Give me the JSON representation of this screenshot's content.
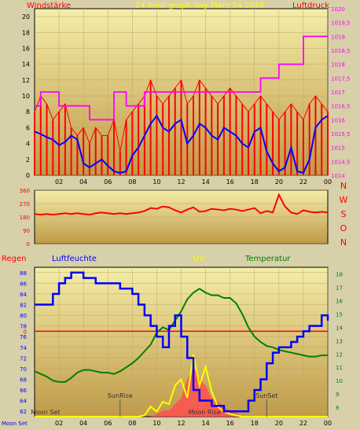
{
  "header": {
    "left_label": "Windstärke",
    "center_label": "24 hour graph day   Marz 14 2016",
    "right_label": "Luftdruck"
  },
  "lower_header": {
    "regen": "Regen",
    "luftfeuchte": "Luftfeuchte",
    "uv": "UV",
    "temperatur": "Temperatur"
  },
  "colors": {
    "background": "#d8d0a8",
    "plot_bg_top": "#f4eda8",
    "plot_bg_bottom": "#c09a48",
    "wind_gust": "#ff0000",
    "wind_avg": "#0000ff",
    "pressure": "#ff00ff",
    "direction": "#ff0000",
    "humidity": "#0000ff",
    "temperature": "#008000",
    "uv": "#ffff00",
    "rain_axis": "#ff0000",
    "solar": "#ff5050"
  },
  "x_ticks": [
    "02",
    "04",
    "06",
    "08",
    "10",
    "12",
    "14",
    "16",
    "18",
    "20",
    "22",
    "00"
  ],
  "chart_data": [
    {
      "type": "line",
      "panel": "wind_pressure",
      "x": [
        0,
        0.5,
        1,
        1.5,
        2,
        2.5,
        3,
        3.5,
        4,
        4.5,
        5,
        5.5,
        6,
        6.5,
        7,
        7.5,
        8,
        8.5,
        9,
        9.5,
        10,
        10.5,
        11,
        11.5,
        12,
        12.5,
        13,
        13.5,
        14,
        14.5,
        15,
        15.5,
        16,
        16.5,
        17,
        17.5,
        18,
        18.5,
        19,
        19.5,
        20,
        20.5,
        21,
        21.5,
        22,
        22.5,
        23,
        23.5,
        24
      ],
      "left_axis": {
        "label": "Windstärke",
        "ylim": [
          0,
          21
        ],
        "ticks": [
          0,
          2,
          4,
          6,
          8,
          10,
          12,
          14,
          16,
          18,
          20
        ]
      },
      "right_axis": {
        "label": "Luftdruck",
        "ylim": [
          1014,
          1020
        ],
        "ticks": [
          "1014",
          "1014,5",
          "1015",
          "1015,5",
          "1016",
          "1016,5",
          "1017",
          "1017,5",
          "1018",
          "1018,5",
          "1019",
          "1019,5",
          "1020"
        ]
      },
      "series": [
        {
          "axis": "left",
          "values": [
            8,
            10,
            9,
            7,
            8,
            9,
            6,
            5,
            6,
            4,
            6,
            5,
            5,
            7,
            3,
            7,
            8,
            9,
            10,
            12,
            10,
            9,
            10,
            11,
            12,
            9,
            10,
            12,
            11,
            10,
            9,
            10,
            11,
            10,
            9,
            8,
            9,
            10,
            9,
            8,
            7,
            8,
            9,
            8,
            7,
            9,
            10,
            9,
            8
          ]
        },
        {
          "axis": "left",
          "values": [
            5.5,
            5.2,
            4.8,
            4.5,
            3.8,
            4.2,
            5.0,
            4.5,
            1.5,
            1.0,
            1.5,
            2.0,
            1.2,
            0.5,
            0.3,
            0.5,
            2.5,
            3.5,
            5.0,
            6.5,
            7.5,
            6.0,
            5.5,
            6.5,
            7.0,
            4.0,
            5.0,
            6.5,
            6.0,
            5.0,
            4.5,
            6.0,
            5.5,
            5.0,
            4.0,
            3.5,
            5.5,
            6.0,
            3.0,
            1.5,
            0.5,
            1.0,
            3.5,
            0.5,
            0.3,
            2.0,
            6.0,
            7.0,
            7.5
          ]
        },
        {
          "axis": "right",
          "values": [
            1016.5,
            1017,
            1017,
            1017,
            1016.5,
            1016.5,
            1016.5,
            1016.5,
            1016.5,
            1016,
            1016,
            1016,
            1016,
            1017,
            1017,
            1016.5,
            1016.5,
            1016.5,
            1017,
            1017,
            1017,
            1017,
            1017,
            1017,
            1017,
            1017,
            1017,
            1017,
            1017,
            1017,
            1017,
            1017,
            1017,
            1017,
            1017,
            1017,
            1017,
            1017.5,
            1017.5,
            1017.5,
            1018,
            1018,
            1018,
            1018,
            1019,
            1019,
            1019,
            1019,
            1019
          ]
        }
      ]
    },
    {
      "type": "line",
      "panel": "wind_direction",
      "x": [
        0,
        0.5,
        1,
        1.5,
        2,
        2.5,
        3,
        3.5,
        4,
        4.5,
        5,
        5.5,
        6,
        6.5,
        7,
        7.5,
        8,
        8.5,
        9,
        9.5,
        10,
        10.5,
        11,
        11.5,
        12,
        12.5,
        13,
        13.5,
        14,
        14.5,
        15,
        15.5,
        16,
        16.5,
        17,
        17.5,
        18,
        18.5,
        19,
        19.5,
        20,
        20.5,
        21,
        21.5,
        22,
        22.5,
        23,
        23.5,
        24
      ],
      "ylim": [
        0,
        360
      ],
      "left_ticks": [
        0,
        90,
        180,
        270,
        360
      ],
      "right_ticks": [
        "N",
        "W",
        "S",
        "O",
        "N"
      ],
      "values": [
        200,
        195,
        200,
        195,
        200,
        205,
        200,
        205,
        200,
        195,
        205,
        210,
        205,
        200,
        205,
        200,
        205,
        210,
        220,
        240,
        235,
        250,
        245,
        225,
        210,
        230,
        245,
        215,
        220,
        235,
        230,
        225,
        235,
        230,
        220,
        230,
        240,
        205,
        220,
        210,
        330,
        250,
        210,
        200,
        225,
        215,
        210,
        215,
        210
      ]
    },
    {
      "type": "line",
      "panel": "humidity_temperature_uv",
      "x": [
        0,
        0.5,
        1,
        1.5,
        2,
        2.5,
        3,
        3.5,
        4,
        4.5,
        5,
        5.5,
        6,
        6.5,
        7,
        7.5,
        8,
        8.5,
        9,
        9.5,
        10,
        10.5,
        11,
        11.5,
        12,
        12.5,
        13,
        13.5,
        14,
        14.5,
        15,
        15.5,
        16,
        16.5,
        17,
        17.5,
        18,
        18.5,
        19,
        19.5,
        20,
        20.5,
        21,
        21.5,
        22,
        22.5,
        23,
        23.5,
        24
      ],
      "left_axis": {
        "label": "Luftfeuchte",
        "ylim": [
          61,
          89
        ],
        "ticks": [
          62,
          64,
          66,
          68,
          70,
          72,
          74,
          76,
          78,
          80,
          82,
          84,
          86,
          88
        ]
      },
      "right_axis": {
        "label": "Temperatur",
        "ylim": [
          7.3,
          18.5
        ],
        "ticks": [
          8,
          9,
          10,
          11,
          12,
          13,
          14,
          15,
          16,
          17,
          18
        ]
      },
      "rain_axis": {
        "label": "Regen",
        "ticks": [
          0
        ],
        "values": []
      },
      "uv_axis": {
        "label": "UV"
      },
      "series": [
        {
          "axis": "left",
          "values": [
            82,
            82,
            82,
            84,
            86,
            87,
            88,
            88,
            87,
            87,
            86,
            86,
            86,
            86,
            85,
            85,
            84,
            82,
            80,
            78,
            76,
            74,
            78,
            80,
            76,
            72,
            66,
            64,
            64,
            63,
            63,
            62,
            62,
            62,
            62,
            64,
            66,
            68,
            71,
            73,
            74,
            74,
            75,
            76,
            77,
            78,
            78,
            80,
            79
          ]
        },
        {
          "axis": "right",
          "values": [
            10.7,
            10.5,
            10.3,
            10.0,
            9.9,
            9.9,
            10.2,
            10.6,
            10.8,
            10.8,
            10.7,
            10.6,
            10.6,
            10.5,
            10.7,
            11.0,
            11.3,
            11.7,
            12.2,
            12.7,
            13.6,
            14.0,
            13.8,
            14.5,
            15.2,
            16.1,
            16.6,
            16.9,
            16.6,
            16.4,
            16.4,
            16.2,
            16.2,
            15.8,
            15.0,
            14.0,
            13.3,
            12.9,
            12.6,
            12.5,
            12.3,
            12.2,
            12.1,
            12.0,
            11.9,
            11.8,
            11.8,
            11.9,
            11.9
          ]
        },
        {
          "axis": "uv",
          "values": [
            0,
            0,
            0,
            0,
            0,
            0,
            0,
            0,
            0,
            0,
            0,
            0,
            0,
            0,
            0,
            0,
            0,
            0,
            0.1,
            0.8,
            0.4,
            1.2,
            1.0,
            2.5,
            3.0,
            1.5,
            5.0,
            2.5,
            4.0,
            2.0,
            0.8,
            0.4,
            0.2,
            0.1,
            0,
            0,
            0,
            0,
            0,
            0,
            0,
            0,
            0,
            0,
            0,
            0,
            0,
            0,
            0
          ]
        },
        {
          "axis": "uv",
          "values": [
            0,
            0,
            0,
            0,
            0,
            0,
            0,
            0,
            0,
            0,
            0,
            0,
            0,
            0,
            0,
            0,
            0,
            0,
            0,
            0,
            0.2,
            0.5,
            0.5,
            1.0,
            1.5,
            3.0,
            4.0,
            3.0,
            2.5,
            1.5,
            1.2,
            0.8,
            0.5,
            0.3,
            0,
            0,
            0,
            0,
            0,
            0,
            0,
            0,
            0,
            0,
            0,
            0,
            0,
            0,
            0
          ]
        }
      ],
      "annotations": [
        {
          "label": "SunRise",
          "x": 7.0
        },
        {
          "label": "SunSet",
          "x": 19.0
        },
        {
          "label": "Moon Set",
          "x": 0.2
        },
        {
          "label": "Moon Rise",
          "x": 12.2
        }
      ],
      "bottom_label": "Moon Set"
    }
  ]
}
